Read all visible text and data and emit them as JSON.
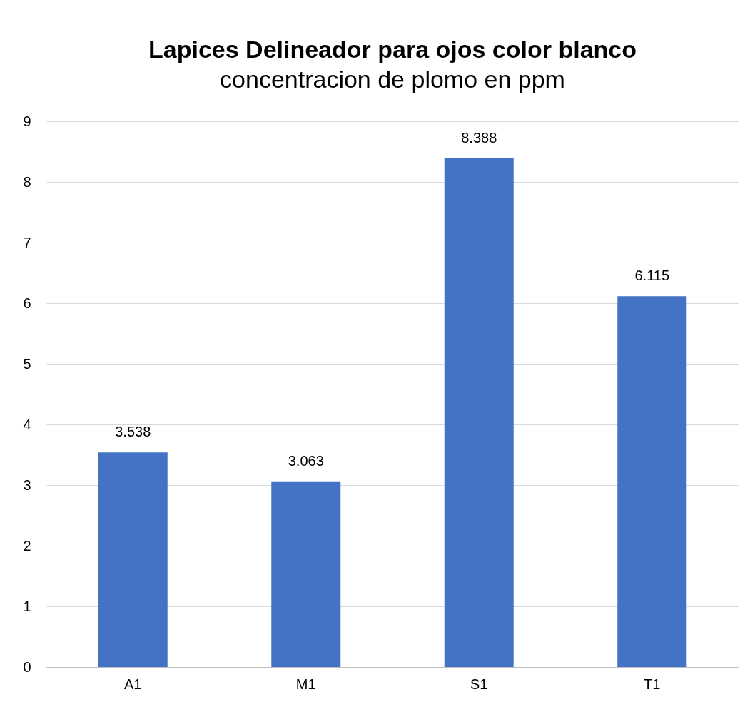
{
  "chart_data": {
    "type": "bar",
    "title": "Lapices Delineador para ojos color blanco",
    "subtitle": "concentracion de plomo en ppm",
    "categories": [
      "A1",
      "M1",
      "S1",
      "T1"
    ],
    "values": [
      3.538,
      3.063,
      8.388,
      6.115
    ],
    "color": "#4472c4",
    "ylim": [
      0,
      9
    ],
    "yticks": [
      0,
      1,
      2,
      3,
      4,
      5,
      6,
      7,
      8,
      9
    ],
    "grid": "y",
    "data_labels": true
  }
}
